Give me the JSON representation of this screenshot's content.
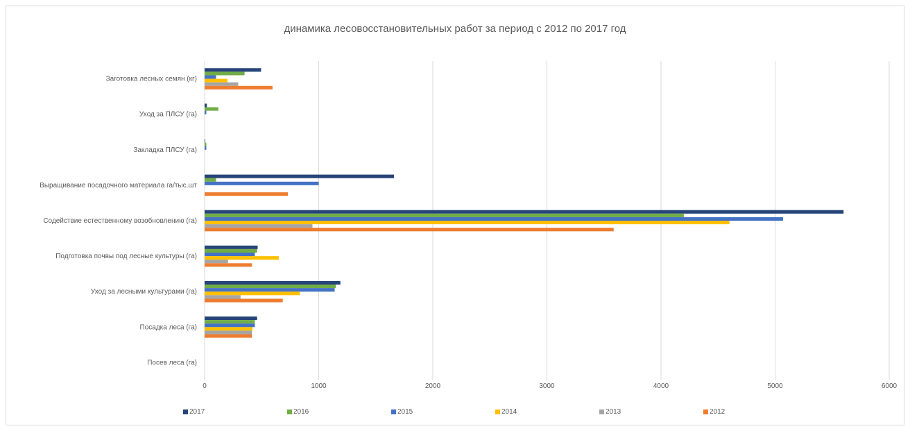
{
  "chart_data": {
    "type": "bar",
    "orientation": "horizontal",
    "title": "динамика лесовосстановительных работ за период  с 2012 по 2017 год",
    "categories": [
      "Посев леса (га)",
      "Посадка леса (га)",
      "Уход за лесными культурами (га)",
      "Подготовка почвы под лесные культуры (га)",
      "Содействие естественному возобновлению (га)",
      "Выращивание посадочного материала га/тыс.шт",
      "Закладка ПЛСУ (га)",
      "Уход за ПЛСУ (га)",
      "Заготовка лесных семян (кг)"
    ],
    "series": [
      {
        "name": "2017",
        "color": "#264478",
        "values": [
          0,
          460,
          1190,
          465,
          5600,
          1660,
          5,
          20,
          495
        ]
      },
      {
        "name": "2016",
        "color": "#70ad47",
        "values": [
          0,
          440,
          1150,
          460,
          4200,
          100,
          15,
          120,
          350
        ]
      },
      {
        "name": "2015",
        "color": "#4472c4",
        "values": [
          0,
          440,
          1140,
          440,
          5070,
          1000,
          15,
          15,
          100
        ]
      },
      {
        "name": "2014",
        "color": "#ffc000",
        "values": [
          0,
          420,
          835,
          650,
          4600,
          0,
          0,
          0,
          200
        ]
      },
      {
        "name": "2013",
        "color": "#a5a5a5",
        "values": [
          0,
          415,
          315,
          205,
          945,
          0,
          0,
          0,
          295
        ]
      },
      {
        "name": "2012",
        "color": "#ed7d31",
        "values": [
          0,
          415,
          685,
          415,
          3585,
          730,
          0,
          0,
          595
        ]
      }
    ],
    "xlim": [
      0,
      6000
    ],
    "xticks": [
      "0",
      "1000",
      "2000",
      "3000",
      "4000",
      "5000",
      "6000"
    ],
    "grid": true,
    "legend_position": "bottom"
  }
}
